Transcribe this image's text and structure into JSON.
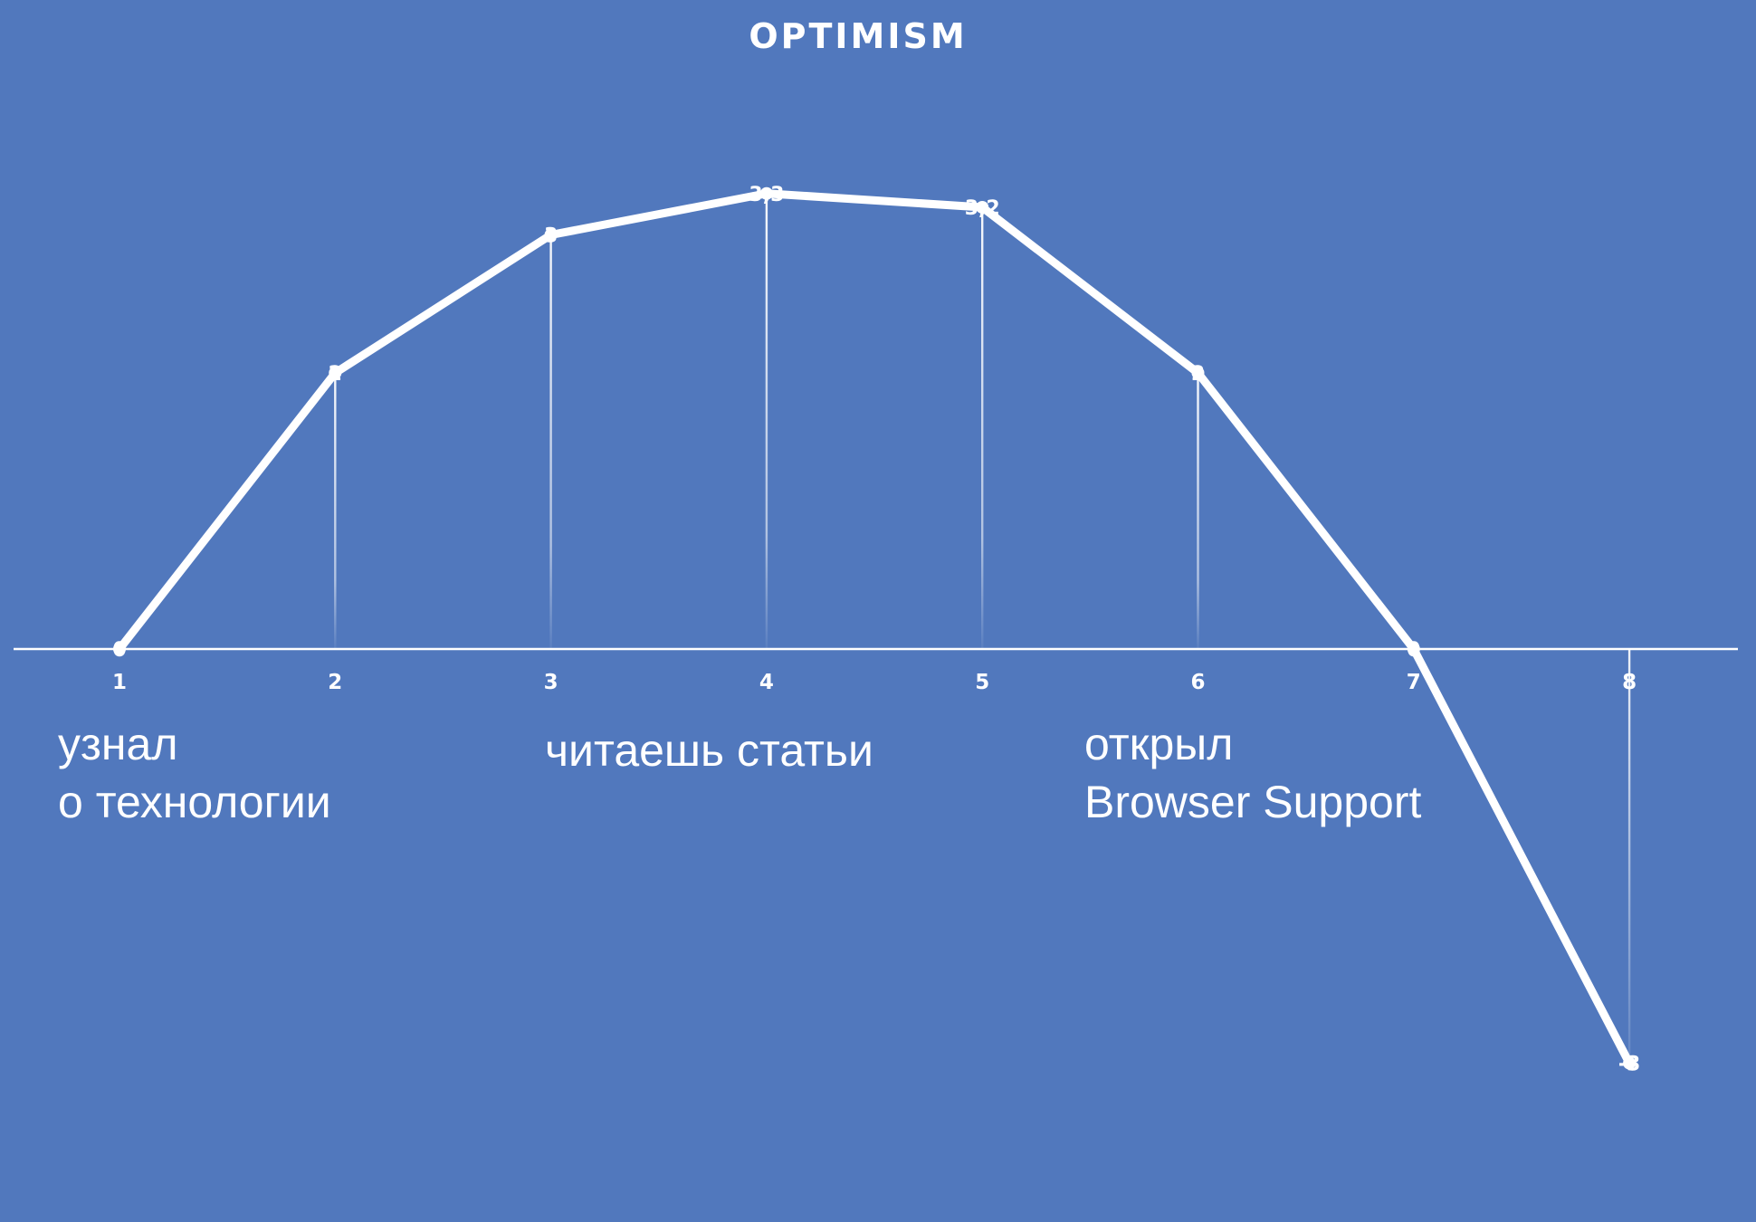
{
  "chart_data": {
    "type": "line",
    "title": "OPTIMISM",
    "x": [
      1,
      2,
      3,
      4,
      5,
      6,
      7,
      8
    ],
    "series": [
      {
        "values": [
          0,
          2,
          3,
          3.3,
          3.2,
          2,
          0,
          -3
        ]
      }
    ],
    "data_labels": [
      "0",
      "2",
      "3",
      "3,3",
      "3,2",
      "2",
      "0",
      "-3"
    ],
    "xlim": [
      0.5,
      8.5
    ],
    "ylim": [
      -4,
      4.5
    ],
    "grid": false,
    "drop_lines": true,
    "colors": {
      "background": "#5178bd",
      "line": "#ffffff",
      "axis": "#ffffff"
    },
    "annotations": [
      {
        "lines": [
          "узнал",
          "о технологии"
        ]
      },
      {
        "lines": [
          "читаешь статьи"
        ]
      },
      {
        "lines": [
          "открыл",
          "Browser Support"
        ]
      }
    ]
  }
}
